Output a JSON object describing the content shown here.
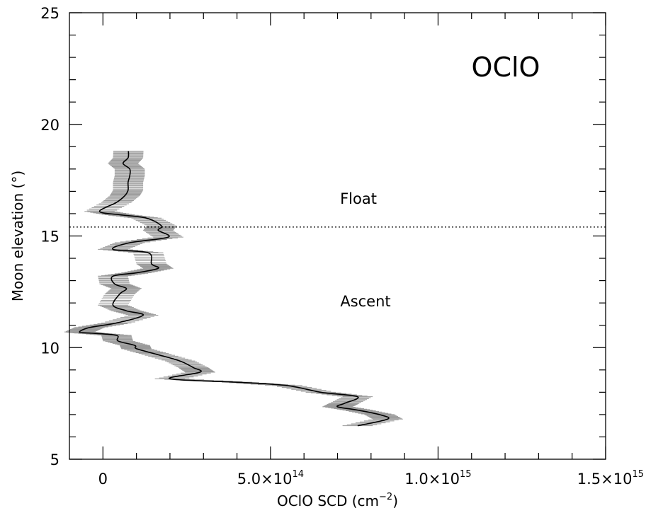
{
  "chart_data": {
    "type": "line",
    "title": "",
    "annotation_species": "OClO",
    "xlabel": {
      "prefix": "OClO SCD (cm",
      "exponent": "−2",
      "suffix": ")"
    },
    "ylabel": "Moon elevation (°)",
    "xlim": [
      -100000000000000.0,
      1500000000000000.0
    ],
    "ylim": [
      5,
      25
    ],
    "x_ticks": [
      {
        "value": 0,
        "mantissa": "0",
        "exponent": ""
      },
      {
        "value": 500000000000000.0,
        "mantissa": "5.0×10",
        "exponent": "14"
      },
      {
        "value": 1000000000000000.0,
        "mantissa": "1.0×10",
        "exponent": "15"
      },
      {
        "value": 1500000000000000.0,
        "mantissa": "1.5×10",
        "exponent": "15"
      }
    ],
    "y_ticks": [
      {
        "value": 5,
        "label": "5"
      },
      {
        "value": 10,
        "label": "10"
      },
      {
        "value": 15,
        "label": "15"
      },
      {
        "value": 20,
        "label": "20"
      },
      {
        "value": 25,
        "label": "25"
      }
    ],
    "float_boundary_elevation": 15.4,
    "region_labels": [
      {
        "text": "Float",
        "x": 750000000000000.0,
        "y": 16.7
      },
      {
        "text": "Ascent",
        "x": 750000000000000.0,
        "y": 12.1
      }
    ],
    "series": [
      {
        "error_bars": "horizontal",
        "points": [
          {
            "x": 76000000000000.0,
            "y": 18.8,
            "err": 45000000000000.0
          },
          {
            "x": 75000000000000.0,
            "y": 18.5,
            "err": 45000000000000.0
          },
          {
            "x": 60000000000000.0,
            "y": 18.25,
            "err": 45000000000000.0
          },
          {
            "x": 80000000000000.0,
            "y": 18.0,
            "err": 45000000000000.0
          },
          {
            "x": 80000000000000.0,
            "y": 17.7,
            "err": 45000000000000.0
          },
          {
            "x": 75000000000000.0,
            "y": 17.4,
            "err": 45000000000000.0
          },
          {
            "x": 75000000000000.0,
            "y": 17.05,
            "err": 45000000000000.0
          },
          {
            "x": 65000000000000.0,
            "y": 16.8,
            "err": 45000000000000.0
          },
          {
            "x": 40000000000000.0,
            "y": 16.5,
            "err": 45000000000000.0
          },
          {
            "x": -10000000000000.0,
            "y": 16.1,
            "err": 45000000000000.0
          },
          {
            "x": 50000000000000.0,
            "y": 15.95,
            "err": 45000000000000.0
          },
          {
            "x": 130000000000000.0,
            "y": 15.8,
            "err": 45000000000000.0
          },
          {
            "x": 175000000000000.0,
            "y": 15.45,
            "err": 45000000000000.0
          },
          {
            "x": 165000000000000.0,
            "y": 15.25,
            "err": 45000000000000.0
          },
          {
            "x": 195000000000000.0,
            "y": 14.95,
            "err": 45000000000000.0
          },
          {
            "x": 80000000000000.0,
            "y": 14.7,
            "err": 45000000000000.0
          },
          {
            "x": 30000000000000.0,
            "y": 14.4,
            "err": 45000000000000.0
          },
          {
            "x": 135000000000000.0,
            "y": 14.25,
            "err": 45000000000000.0
          },
          {
            "x": 145000000000000.0,
            "y": 13.75,
            "err": 45000000000000.0
          },
          {
            "x": 165000000000000.0,
            "y": 13.55,
            "err": 45000000000000.0
          },
          {
            "x": 100000000000000.0,
            "y": 13.35,
            "err": 45000000000000.0
          },
          {
            "x": 30000000000000.0,
            "y": 13.2,
            "err": 45000000000000.0
          },
          {
            "x": 35000000000000.0,
            "y": 12.85,
            "err": 45000000000000.0
          },
          {
            "x": 70000000000000.0,
            "y": 12.65,
            "err": 45000000000000.0
          },
          {
            "x": 50000000000000.0,
            "y": 12.4,
            "err": 45000000000000.0
          },
          {
            "x": 30000000000000.0,
            "y": 11.9,
            "err": 45000000000000.0
          },
          {
            "x": 70000000000000.0,
            "y": 11.65,
            "err": 45000000000000.0
          },
          {
            "x": 120000000000000.0,
            "y": 11.45,
            "err": 45000000000000.0
          },
          {
            "x": 40000000000000.0,
            "y": 11.1,
            "err": 45000000000000.0
          },
          {
            "x": -40000000000000.0,
            "y": 10.9,
            "err": 45000000000000.0
          },
          {
            "x": -70000000000000.0,
            "y": 10.7,
            "err": 45000000000000.0
          },
          {
            "x": -40000000000000.0,
            "y": 10.65,
            "err": 45000000000000.0
          },
          {
            "x": 40000000000000.0,
            "y": 10.55,
            "err": 45000000000000.0
          },
          {
            "x": 45000000000000.0,
            "y": 10.3,
            "err": 45000000000000.0
          },
          {
            "x": 95000000000000.0,
            "y": 10.1,
            "err": 45000000000000.0
          },
          {
            "x": 100000000000000.0,
            "y": 9.95,
            "err": 45000000000000.0
          },
          {
            "x": 160000000000000.0,
            "y": 9.7,
            "err": 45000000000000.0
          },
          {
            "x": 230000000000000.0,
            "y": 9.4,
            "err": 45000000000000.0
          },
          {
            "x": 270000000000000.0,
            "y": 9.1,
            "err": 45000000000000.0
          },
          {
            "x": 290000000000000.0,
            "y": 8.9,
            "err": 45000000000000.0
          },
          {
            "x": 200000000000000.0,
            "y": 8.6,
            "err": 45000000000000.0
          },
          {
            "x": 400000000000000.0,
            "y": 8.45,
            "err": 45000000000000.0
          },
          {
            "x": 550000000000000.0,
            "y": 8.3,
            "err": 45000000000000.0
          },
          {
            "x": 650000000000000.0,
            "y": 8.0,
            "err": 45000000000000.0
          },
          {
            "x": 760000000000000.0,
            "y": 7.8,
            "err": 45000000000000.0
          },
          {
            "x": 720000000000000.0,
            "y": 7.5,
            "err": 45000000000000.0
          },
          {
            "x": 700000000000000.0,
            "y": 7.35,
            "err": 45000000000000.0
          },
          {
            "x": 760000000000000.0,
            "y": 7.2,
            "err": 45000000000000.0
          },
          {
            "x": 825000000000000.0,
            "y": 7.0,
            "err": 45000000000000.0
          },
          {
            "x": 850000000000000.0,
            "y": 6.8,
            "err": 45000000000000.0
          },
          {
            "x": 760000000000000.0,
            "y": 6.5,
            "err": 45000000000000.0
          }
        ]
      }
    ],
    "grid": false,
    "legend": "none"
  }
}
